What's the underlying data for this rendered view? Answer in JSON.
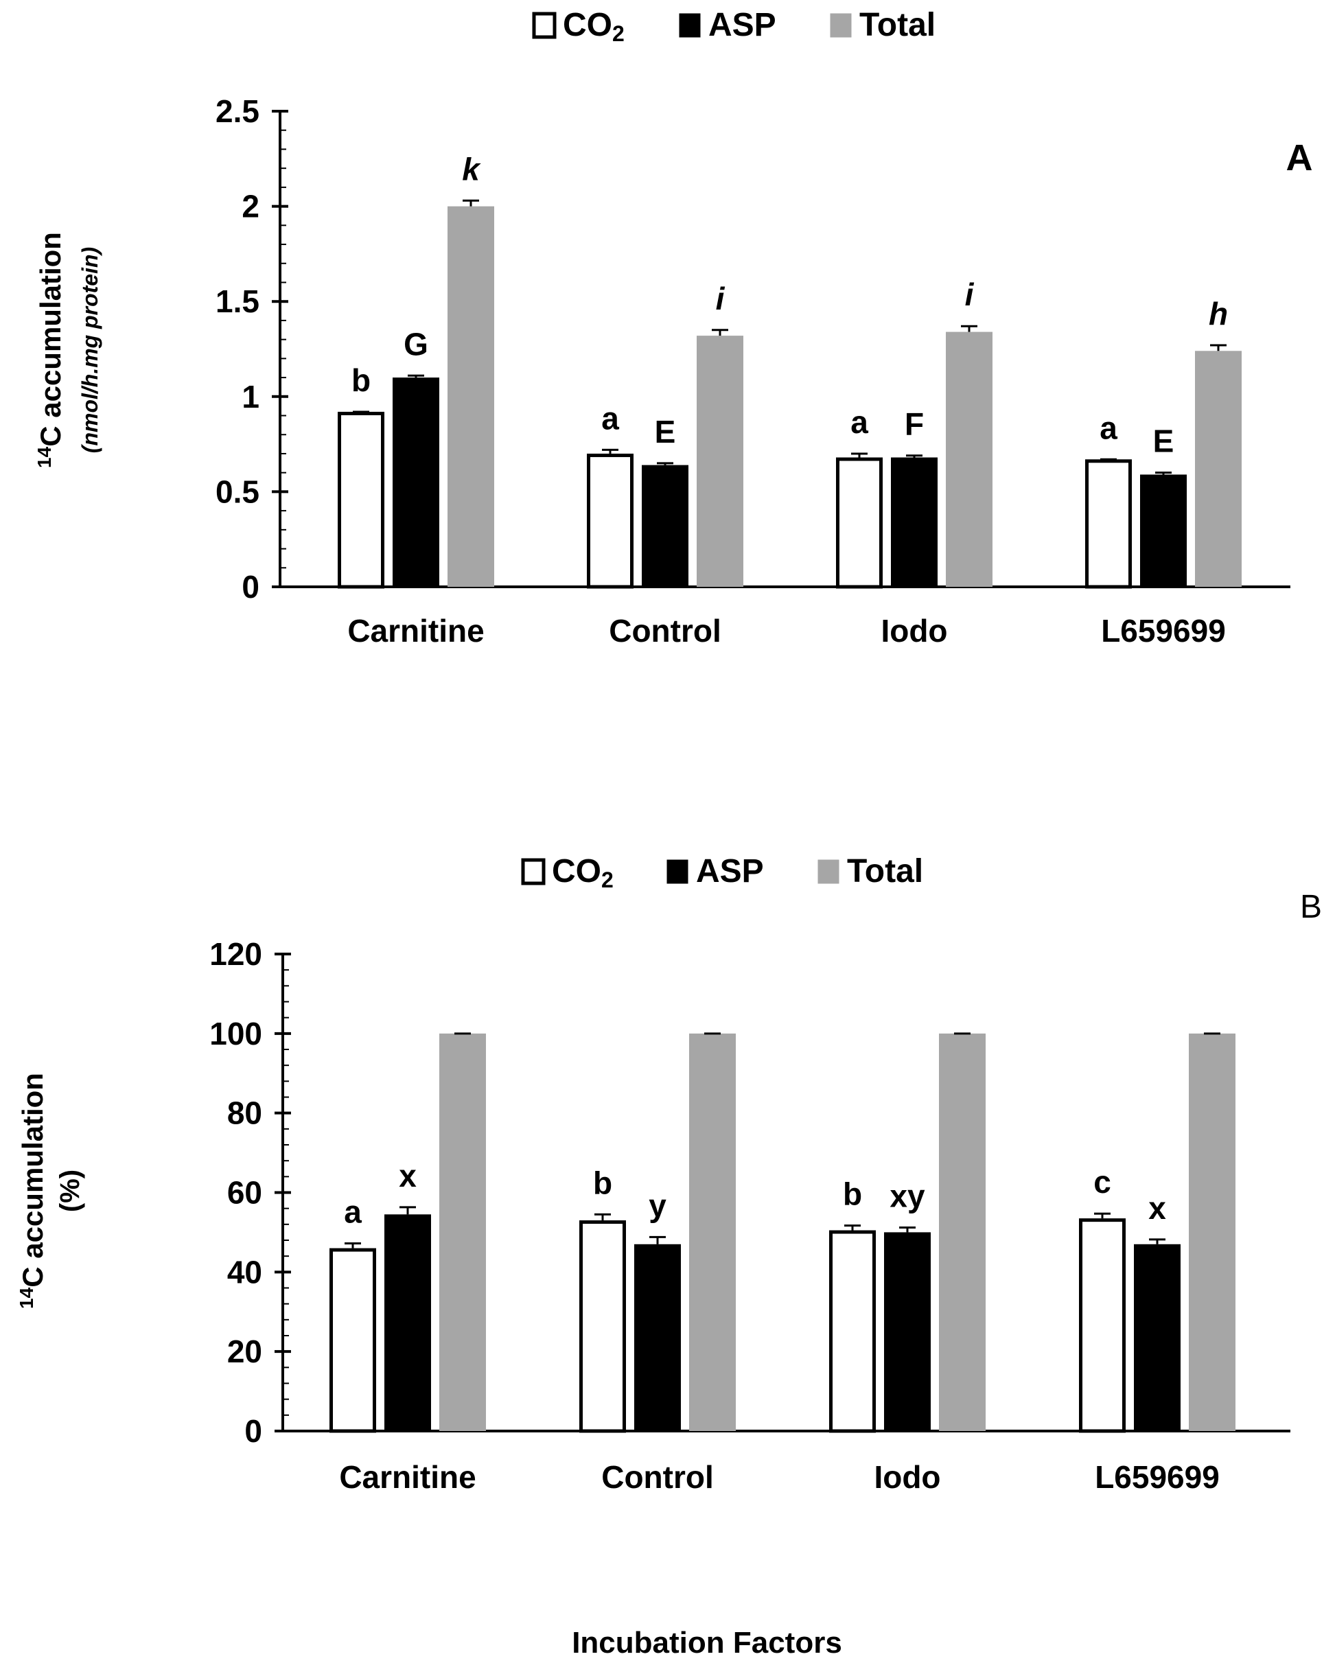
{
  "chart_data": [
    {
      "panel": "A",
      "type": "bar",
      "categories": [
        "Carnitine",
        "Control",
        "Iodo",
        "L659699"
      ],
      "series": [
        {
          "name": "CO",
          "name_sub": "2",
          "color": "#ffffff",
          "stroke": "#000000",
          "values": [
            0.92,
            0.7,
            0.68,
            0.67
          ],
          "errors": [
            0.0,
            0.02,
            0.02,
            0.0
          ],
          "letters": [
            "b",
            "a",
            "a",
            "a"
          ],
          "italic": false
        },
        {
          "name": "ASP",
          "color": "#000000",
          "stroke": "#000000",
          "values": [
            1.1,
            0.64,
            0.68,
            0.59
          ],
          "errors": [
            0.01,
            0.01,
            0.01,
            0.01
          ],
          "letters": [
            "G",
            "E",
            "F",
            "E"
          ],
          "italic": false
        },
        {
          "name": "Total",
          "color": "#a6a6a6",
          "stroke": "#a6a6a6",
          "values": [
            2.0,
            1.32,
            1.34,
            1.24
          ],
          "errors": [
            0.03,
            0.03,
            0.03,
            0.03
          ],
          "letters": [
            "k",
            "i",
            "i",
            "h"
          ],
          "italic": true
        }
      ],
      "ylim": [
        0,
        2.5
      ],
      "yticks": [
        "0",
        "0.5",
        "1",
        "1.5",
        "2",
        "2.5"
      ],
      "ytick_values": [
        0,
        0.5,
        1,
        1.5,
        2,
        2.5
      ],
      "ylabel_sup": "14",
      "ylabel_main": "C accumulation",
      "ylabel_unit": "(nmol/h.mg protein)",
      "panel_label": "A",
      "legend_position": "top-center"
    },
    {
      "panel": "B",
      "type": "bar",
      "categories": [
        "Carnitine",
        "Control",
        "Iodo",
        "L659699"
      ],
      "series": [
        {
          "name": "CO",
          "name_sub": "2",
          "color": "#ffffff",
          "stroke": "#000000",
          "values": [
            46,
            53,
            50.5,
            53.5
          ],
          "errors": [
            1.2,
            1.5,
            1.2,
            1.2
          ],
          "letters": [
            "a",
            "b",
            "b",
            "c"
          ],
          "italic": false
        },
        {
          "name": "ASP",
          "color": "#000000",
          "stroke": "#000000",
          "values": [
            54.5,
            47,
            50,
            47
          ],
          "errors": [
            1.8,
            1.8,
            1.2,
            1.2
          ],
          "letters": [
            "x",
            "y",
            "xy",
            "x"
          ],
          "italic": false
        },
        {
          "name": "Total",
          "color": "#a6a6a6",
          "stroke": "#a6a6a6",
          "values": [
            100,
            100,
            100,
            100
          ],
          "errors": [
            0,
            0,
            0,
            0
          ],
          "letters": [
            "",
            "",
            "",
            ""
          ],
          "italic": false
        }
      ],
      "ylim": [
        0,
        120
      ],
      "yticks": [
        "0",
        "20",
        "40",
        "60",
        "80",
        "100",
        "120"
      ],
      "ytick_values": [
        0,
        20,
        40,
        60,
        80,
        100,
        120
      ],
      "ylabel_sup": "14",
      "ylabel_main": "C accumulation",
      "ylabel_unit": "(%)",
      "panel_label": "B",
      "legend_position": "top-center"
    }
  ],
  "xlabel": "Incubation Factors"
}
